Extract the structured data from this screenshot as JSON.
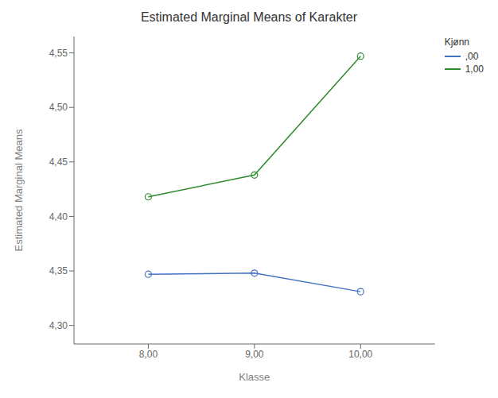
{
  "chart_data": {
    "type": "line",
    "title": "Estimated Marginal Means of Karakter",
    "xlabel": "Klasse",
    "ylabel": "Estimated Marginal Means",
    "x": [
      8.0,
      9.0,
      10.0
    ],
    "series": [
      {
        "name": ",00",
        "color": "#4472c4",
        "values": [
          4.347,
          4.348,
          4.331
        ]
      },
      {
        "name": "1,00",
        "color": "#2d8a2d",
        "values": [
          4.418,
          4.438,
          4.547
        ]
      }
    ],
    "xlim": [
      7.3,
      10.7
    ],
    "xticks": [
      {
        "value": 8,
        "label": "8,00"
      },
      {
        "value": 9,
        "label": "9,00"
      },
      {
        "value": 10,
        "label": "10,00"
      }
    ],
    "ylim": [
      4.283,
      4.565
    ],
    "yticks": [
      {
        "value": 4.3,
        "label": "4,30"
      },
      {
        "value": 4.35,
        "label": "4,35"
      },
      {
        "value": 4.4,
        "label": "4,40"
      },
      {
        "value": 4.45,
        "label": "4,45"
      },
      {
        "value": 4.5,
        "label": "4,50"
      },
      {
        "value": 4.55,
        "label": "4,55"
      }
    ],
    "grid": false,
    "legend": "right",
    "legend_title": "Kjønn",
    "marker": "circle"
  }
}
